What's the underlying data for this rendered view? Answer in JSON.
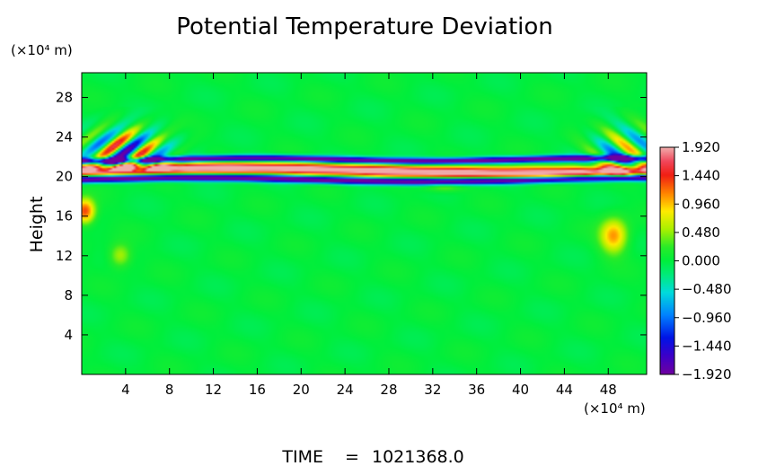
{
  "chart_data": {
    "type": "heatmap",
    "title": "Potential Temperature Deviation",
    "ylabel": "Height",
    "y_unit": "(×10⁴ m)",
    "x_unit": "(×10⁴ m)",
    "xticks": [
      4,
      8,
      12,
      16,
      20,
      24,
      28,
      32,
      36,
      40,
      44,
      48
    ],
    "yticks": [
      4,
      8,
      12,
      16,
      20,
      24,
      28
    ],
    "xlim": [
      0,
      51.5
    ],
    "ylim": [
      0,
      30.5
    ],
    "colorbar": {
      "labels": [
        "1.920",
        "1.440",
        "0.960",
        "0.480",
        "0.000",
        "−0.480",
        "−0.960",
        "−1.440",
        "−1.920"
      ],
      "values": [
        1.92,
        1.44,
        0.96,
        0.48,
        0.0,
        -0.48,
        -0.96,
        -1.44,
        -1.92
      ],
      "range": [
        -1.92,
        1.92
      ]
    },
    "features": [
      {
        "kind": "band",
        "y_center": 20.6,
        "y_half_width": 0.9,
        "value": 1.92,
        "note": "thin pink layer"
      },
      {
        "kind": "band",
        "y_center": 20.0,
        "y_half_width": 0.5,
        "value": -1.92
      },
      {
        "kind": "band",
        "y_center": 21.6,
        "y_half_width": 0.5,
        "value": -1.8
      },
      {
        "kind": "waves",
        "x_range": [
          0,
          8
        ],
        "y_range": [
          20,
          27
        ],
        "amplitude": 1.9
      },
      {
        "kind": "waves",
        "x_range": [
          45,
          51.5
        ],
        "y_range": [
          20,
          27
        ],
        "amplitude": 1.2
      },
      {
        "kind": "blob",
        "x": 0.3,
        "y": 16.5,
        "value": 1.4
      },
      {
        "kind": "blob",
        "x": 48.5,
        "y": 14,
        "value": 1.1
      }
    ]
  },
  "time_label": "TIME",
  "time_eq": "=",
  "time_value": "1021368.0"
}
